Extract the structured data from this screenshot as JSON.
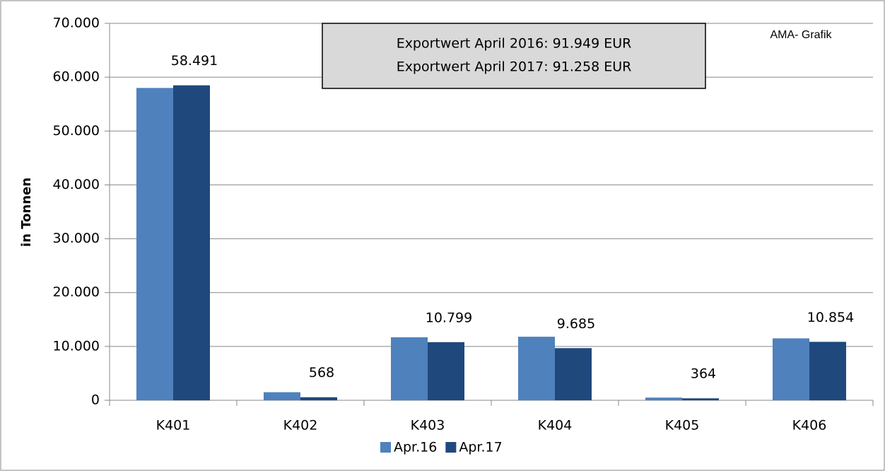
{
  "chart_data": {
    "type": "bar",
    "y_label": "in Tonnen",
    "annotations": [
      "Exportwert April 2016:  91.949 EUR",
      "Exportwert  April 2017: 91.258 EUR",
      "AMA- Grafik"
    ],
    "categories": [
      "K401",
      "K402",
      "K403",
      "K404",
      "K405",
      "K406"
    ],
    "series": [
      {
        "name": "Apr.16",
        "color": "#4f81bd",
        "values": [
          58000,
          1500,
          11700,
          11800,
          500,
          11500
        ]
      },
      {
        "name": "Apr.17",
        "color": "#1f497d",
        "values": [
          58491,
          568,
          10799,
          9685,
          364,
          10854
        ],
        "value_labels": [
          "58.491",
          "568",
          "10.799",
          "9.685",
          "364",
          "10.854"
        ]
      }
    ],
    "ylim": [
      0,
      70000
    ],
    "yticks": [
      0,
      {
        "value": 10000,
        "label": "10.000"
      },
      {
        "value": 20000,
        "label": "20.000"
      },
      {
        "value": 30000,
        "label": "30.000"
      },
      {
        "value": 40000,
        "label": "40.000"
      },
      {
        "value": 50000,
        "label": "50.000"
      },
      {
        "value": 60000,
        "label": "60.000"
      },
      {
        "value": 70000,
        "label": "70.000"
      }
    ],
    "grid": true,
    "legend": "bottom"
  }
}
